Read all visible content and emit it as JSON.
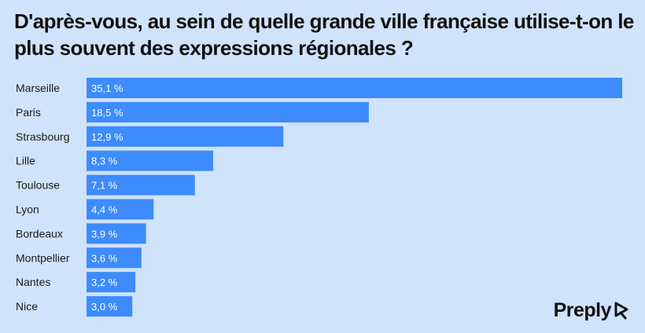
{
  "chart_data": {
    "type": "bar",
    "orientation": "horizontal",
    "title": "D'après-vous, au sein de quelle grande ville française utilise-t-on le plus souvent des expressions régionales ?",
    "categories": [
      "Marseille",
      "Paris",
      "Strasbourg",
      "Lille",
      "Toulouse",
      "Lyon",
      "Bordeaux",
      "Montpellier",
      "Nantes",
      "Nice"
    ],
    "values": [
      35.1,
      18.5,
      12.9,
      8.3,
      7.1,
      4.4,
      3.9,
      3.6,
      3.2,
      3.0
    ],
    "value_labels": [
      "35,1 %",
      "18,5 %",
      "12,9 %",
      "8,3 %",
      "7,1 %",
      "4,4 %",
      "3,9 %",
      "3,6 %",
      "3,2 %",
      "3,0 %"
    ],
    "unit": "%",
    "xlim": [
      0,
      35.1
    ],
    "grid": false,
    "legend": "none",
    "colors": {
      "bar": "#3d8bfd",
      "background": "#cfe3fb",
      "text": "#111111"
    }
  },
  "brand": {
    "name": "Preply"
  }
}
